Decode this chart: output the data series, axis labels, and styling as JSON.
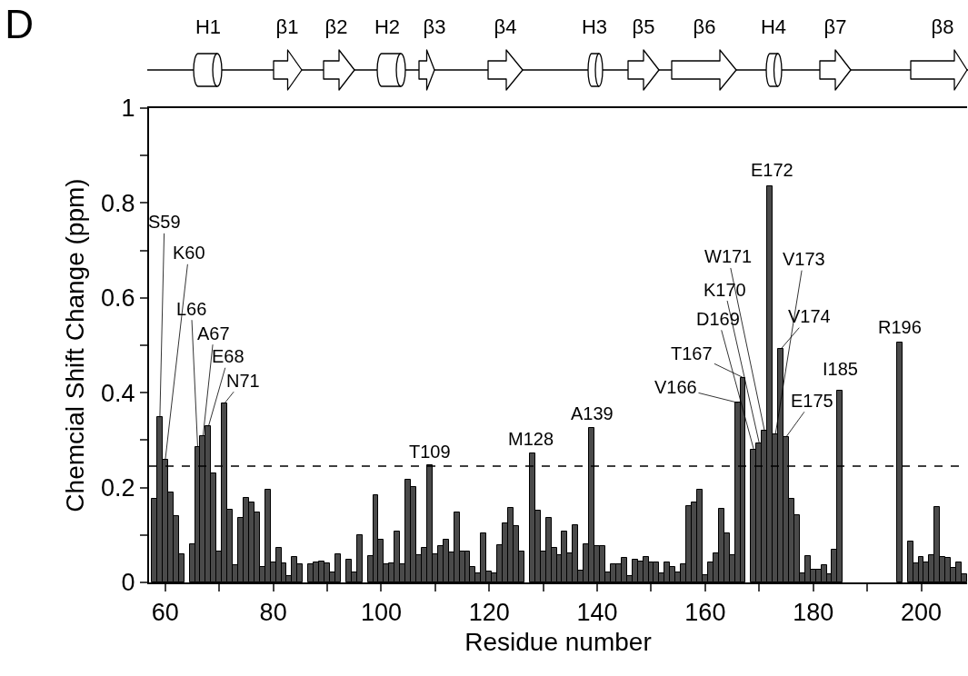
{
  "chart_data": {
    "type": "bar",
    "title": "D",
    "xlabel": "Residue number",
    "ylabel": "Chemcial Shift Change (ppm)",
    "x": [
      58,
      59,
      60,
      61,
      62,
      63,
      64,
      65,
      66,
      67,
      68,
      69,
      70,
      71,
      72,
      73,
      74,
      75,
      76,
      77,
      78,
      79,
      80,
      81,
      82,
      83,
      84,
      85,
      86,
      87,
      88,
      89,
      90,
      91,
      92,
      93,
      94,
      95,
      96,
      97,
      98,
      99,
      100,
      101,
      102,
      103,
      104,
      105,
      106,
      107,
      108,
      109,
      110,
      111,
      112,
      113,
      114,
      115,
      116,
      117,
      118,
      119,
      120,
      121,
      122,
      123,
      124,
      125,
      126,
      127,
      128,
      129,
      130,
      131,
      132,
      133,
      134,
      135,
      136,
      137,
      138,
      139,
      140,
      141,
      142,
      143,
      144,
      145,
      146,
      147,
      148,
      149,
      150,
      151,
      152,
      153,
      154,
      155,
      156,
      157,
      158,
      159,
      160,
      161,
      162,
      163,
      164,
      165,
      166,
      167,
      168,
      169,
      170,
      171,
      172,
      173,
      174,
      175,
      176,
      177,
      178,
      179,
      180,
      181,
      182,
      183,
      184,
      185,
      186,
      187,
      188,
      189,
      190,
      191,
      192,
      193,
      194,
      195,
      196,
      197,
      198,
      199,
      200,
      201,
      202,
      203,
      204,
      205,
      206,
      207,
      208
    ],
    "values": [
      0.177,
      0.348,
      0.258,
      0.189,
      0.139,
      0.059,
      null,
      0.081,
      0.286,
      0.309,
      0.329,
      0.23,
      0.065,
      0.378,
      0.154,
      0.037,
      0.136,
      0.179,
      0.168,
      0.148,
      0.033,
      0.196,
      0.043,
      0.072,
      0.04,
      0.013,
      0.054,
      0.038,
      null,
      0.038,
      0.043,
      0.045,
      0.04,
      0.022,
      0.059,
      null,
      0.047,
      0.022,
      0.1,
      null,
      0.056,
      0.183,
      0.091,
      0.038,
      0.04,
      0.108,
      0.038,
      0.217,
      0.202,
      0.058,
      0.072,
      0.248,
      0.059,
      0.076,
      0.09,
      0.064,
      0.147,
      0.066,
      0.066,
      0.033,
      0.019,
      0.103,
      0.023,
      0.02,
      0.078,
      0.124,
      0.157,
      0.119,
      0.066,
      null,
      0.272,
      0.152,
      0.066,
      0.136,
      0.072,
      0.058,
      0.107,
      0.061,
      0.12,
      0.025,
      0.081,
      0.325,
      0.076,
      0.077,
      0.022,
      0.039,
      0.038,
      0.052,
      0.013,
      0.047,
      0.045,
      0.053,
      0.042,
      0.042,
      0.019,
      0.043,
      0.032,
      0.022,
      0.039,
      0.16,
      0.168,
      0.195,
      0.016,
      0.042,
      0.061,
      0.155,
      0.103,
      0.058,
      0.379,
      0.432,
      null,
      0.28,
      0.294,
      0.319,
      0.836,
      0.312,
      0.492,
      0.307,
      0.176,
      0.141,
      0.02,
      0.056,
      0.027,
      0.027,
      0.036,
      0.017,
      0.069,
      0.404,
      null,
      null,
      null,
      null,
      null,
      null,
      null,
      null,
      null,
      null,
      0.505,
      null,
      0.087,
      0.04,
      0.053,
      0.042,
      0.058,
      0.159,
      0.054,
      0.051,
      0.03,
      0.042,
      0.018
    ],
    "color": "#4a4a4a",
    "xlim": [
      57,
      208.5
    ],
    "xticks": [
      60,
      {
        "value": 70,
        "label": null
      },
      80,
      {
        "value": 90,
        "label": null
      },
      100,
      {
        "value": 110,
        "label": null
      },
      120,
      {
        "value": 130,
        "label": null
      },
      140,
      {
        "value": 150,
        "label": null
      },
      160,
      {
        "value": 170,
        "label": null
      },
      180,
      {
        "value": 190,
        "label": null
      },
      200
    ],
    "ylim": [
      0,
      1
    ],
    "yticks": [
      0,
      {
        "value": 0.1,
        "label": null
      },
      0.2,
      {
        "value": 0.3,
        "label": null
      },
      0.4,
      {
        "value": 0.5,
        "label": null
      },
      0.6,
      {
        "value": 0.7,
        "label": null
      },
      0.8,
      {
        "value": 0.9,
        "label": null
      },
      1
    ],
    "ref_lines": [
      {
        "axis": "y",
        "value": 0.245,
        "line_style": "dashed",
        "color": "#000000"
      }
    ],
    "annotations": [
      "H1",
      "β1",
      "β2",
      "H2",
      "β3",
      "β4",
      "H3",
      "β5",
      "β6",
      "H4",
      "β7",
      "β8",
      {
        "text": "S59",
        "x": 59,
        "y": 0.348
      },
      {
        "text": "K60",
        "x": 60,
        "y": 0.258
      },
      {
        "text": "L66",
        "x": 66,
        "y": 0.286
      },
      {
        "text": "A67",
        "x": 67,
        "y": 0.309
      },
      {
        "text": "E68",
        "x": 68,
        "y": 0.329
      },
      {
        "text": "N71",
        "x": 71,
        "y": 0.378
      },
      {
        "text": "T109",
        "x": 109,
        "y": 0.248
      },
      {
        "text": "M128",
        "x": 128,
        "y": 0.272
      },
      {
        "text": "A139",
        "x": 139,
        "y": 0.325
      },
      {
        "text": "V166",
        "x": 166,
        "y": 0.379
      },
      {
        "text": "T167",
        "x": 167,
        "y": 0.432
      },
      {
        "text": "D169",
        "x": 169,
        "y": 0.28
      },
      {
        "text": "K170",
        "x": 170,
        "y": 0.294
      },
      {
        "text": "W171",
        "x": 171,
        "y": 0.319
      },
      {
        "text": "E172",
        "x": 172,
        "y": 0.836
      },
      {
        "text": "V173",
        "x": 173,
        "y": 0.312
      },
      {
        "text": "V174",
        "x": 174,
        "y": 0.492
      },
      {
        "text": "E175",
        "x": 175,
        "y": 0.307
      },
      {
        "text": "I185",
        "x": 185,
        "y": 0.404
      },
      {
        "text": "R196",
        "x": 196,
        "y": 0.505
      }
    ]
  }
}
